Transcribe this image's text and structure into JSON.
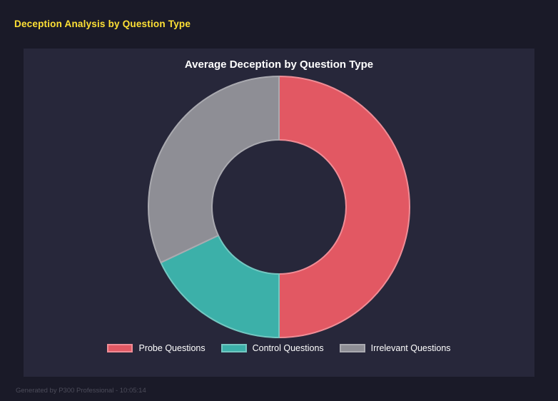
{
  "header": {
    "title": "Deception Analysis by Question Type",
    "color": "#ffe135"
  },
  "chart_data": {
    "type": "pie",
    "subtype": "donut",
    "title": "Average Deception by Question Type",
    "labels": [
      "Probe Questions",
      "Control Questions",
      "Irrelevant Questions"
    ],
    "values": [
      50,
      18,
      32
    ],
    "unit": "percent",
    "colors": [
      "#e25863",
      "#3cb0a9",
      "#8e8e95"
    ],
    "border_colors": [
      "#ef8d96",
      "#74c7c1",
      "#aaaab0"
    ],
    "legend_position": "bottom",
    "start_angle_deg": 0,
    "direction": "clockwise",
    "hole_color": "#27273a"
  },
  "footer": {
    "text": "Generated by P300 Professional - 10:05:14"
  }
}
